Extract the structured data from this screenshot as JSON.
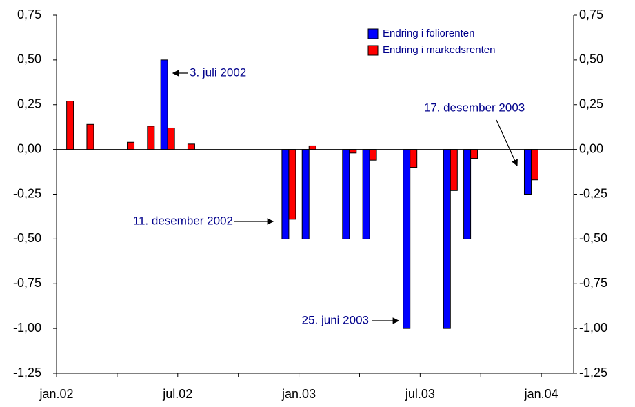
{
  "chart_data": {
    "type": "bar",
    "x": [
      0.5,
      1.5,
      3.5,
      4.5,
      5.5,
      6.5,
      11.5,
      12.5,
      14.5,
      15.5,
      17.5,
      19.5,
      20.5,
      23.5
    ],
    "series": [
      {
        "name": "Endring i foliorenten",
        "color": "#0000ff",
        "values": [
          null,
          null,
          null,
          null,
          0.5,
          null,
          -0.5,
          -0.5,
          -0.5,
          -0.5,
          -1,
          -1,
          -0.5,
          -0.25
        ]
      },
      {
        "name": "Endring i markedsrenten",
        "color": "#ff0000",
        "values": [
          0.27,
          0.14,
          0.04,
          0.13,
          0.12,
          0.03,
          -0.39,
          0.02,
          -0.02,
          -0.06,
          -0.1,
          -0.23,
          -0.05,
          -0.17
        ]
      }
    ],
    "xlim": [
      0,
      25.6
    ],
    "xticks": [
      {
        "value": 0,
        "label": "jan.02"
      },
      {
        "value": 6,
        "label": "jul.02"
      },
      {
        "value": 12,
        "label": "jan.03"
      },
      {
        "value": 18,
        "label": "jul.03"
      },
      {
        "value": 24,
        "label": "jan.04"
      }
    ],
    "xminorticks": [
      3,
      9,
      15,
      21
    ],
    "ylim": [
      -1.25,
      0.75
    ],
    "yticks": [
      {
        "value": 0.75,
        "label": "0,75"
      },
      {
        "value": 0.5,
        "label": "0,50"
      },
      {
        "value": 0.25,
        "label": "0,25"
      },
      {
        "value": 0,
        "label": "0,00"
      },
      {
        "value": -0.25,
        "label": "-0,25"
      },
      {
        "value": -0.5,
        "label": "-0,50"
      },
      {
        "value": -0.75,
        "label": "-0,75"
      },
      {
        "value": -1,
        "label": "-1,00"
      },
      {
        "value": -1.25,
        "label": "-1,25"
      }
    ],
    "y2lim": [
      -1.25,
      0.75
    ],
    "y2ticks": [
      {
        "value": 0.75,
        "label": "0,75"
      },
      {
        "value": 0.5,
        "label": "0,50"
      },
      {
        "value": 0.25,
        "label": "0,25"
      },
      {
        "value": 0,
        "label": "0,00"
      },
      {
        "value": -0.25,
        "label": "-0,25"
      },
      {
        "value": -0.5,
        "label": "-0,50"
      },
      {
        "value": -0.75,
        "label": "-0,75"
      },
      {
        "value": -1,
        "label": "-1,00"
      },
      {
        "value": -1.25,
        "label": "-1,25"
      }
    ],
    "annotations": [
      "3. juli 2002",
      "11. desember 2002",
      "25. juni 2003",
      "17. desember 2003"
    ],
    "legend": "top-right"
  }
}
